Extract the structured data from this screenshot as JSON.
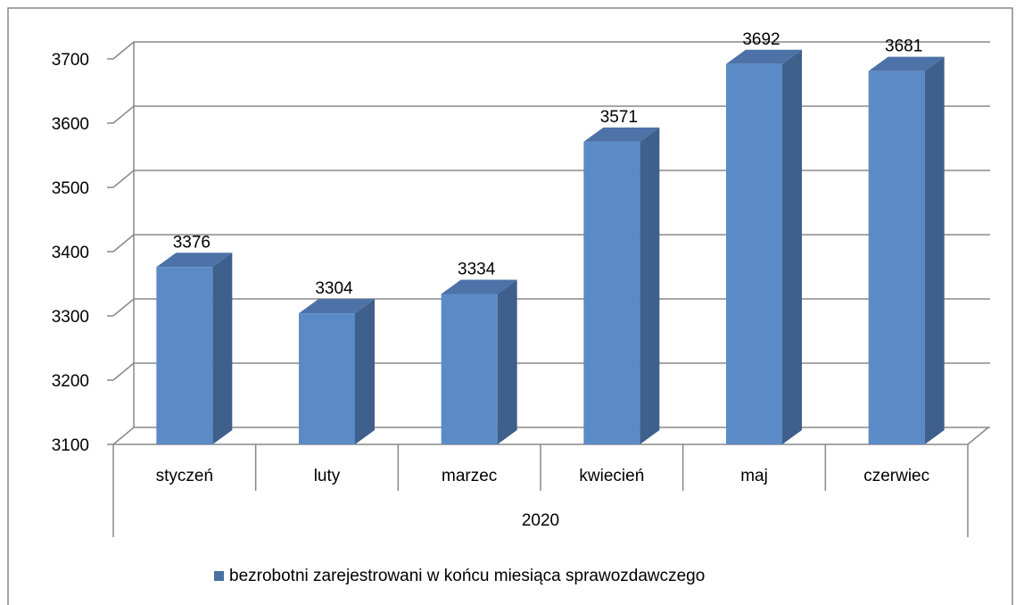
{
  "chart_data": {
    "type": "bar3d",
    "categories": [
      "styczeń",
      "luty",
      "marzec",
      "kwiecień",
      "maj",
      "czerwiec"
    ],
    "group_label": "2020",
    "series": [
      {
        "name": "bezrobotni zarejestrowani w końcu miesiąca sprawozdawczego",
        "color": "#5b8bc6",
        "values": [
          3376,
          3304,
          3334,
          3571,
          3692,
          3681
        ]
      }
    ],
    "ylim": [
      3100,
      3700
    ],
    "yticks": [
      3100,
      3200,
      3300,
      3400,
      3500,
      3600,
      3700
    ],
    "grid": true,
    "legend": "bottom"
  }
}
